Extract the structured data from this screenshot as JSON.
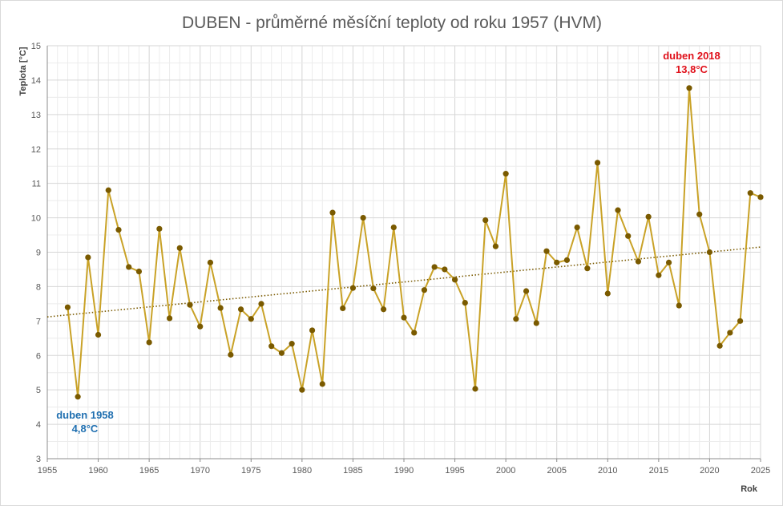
{
  "chart_data": {
    "type": "line",
    "title": "DUBEN - průměrné měsíční teploty od roku 1957 (HVM)",
    "xlabel": "Rok",
    "ylabel": "Teplota [°C]",
    "xlim": [
      1955,
      2025
    ],
    "ylim": [
      3,
      15
    ],
    "x_ticks": [
      1955,
      1960,
      1965,
      1970,
      1975,
      1980,
      1985,
      1990,
      1995,
      2000,
      2005,
      2010,
      2015,
      2020,
      2025
    ],
    "y_ticks": [
      3,
      4,
      5,
      6,
      7,
      8,
      9,
      10,
      11,
      12,
      13,
      14,
      15
    ],
    "grid": true,
    "legend": "none",
    "series": [
      {
        "color": "#c9a227",
        "marker_color": "#7a5a00",
        "x": [
          1957,
          1958,
          1959,
          1960,
          1961,
          1962,
          1963,
          1964,
          1965,
          1966,
          1967,
          1968,
          1969,
          1970,
          1971,
          1972,
          1973,
          1974,
          1975,
          1976,
          1977,
          1978,
          1979,
          1980,
          1981,
          1982,
          1983,
          1984,
          1985,
          1986,
          1987,
          1988,
          1989,
          1990,
          1991,
          1992,
          1993,
          1994,
          1995,
          1996,
          1997,
          1998,
          1999,
          2000,
          2001,
          2002,
          2003,
          2004,
          2005,
          2006,
          2007,
          2008,
          2009,
          2010,
          2011,
          2012,
          2013,
          2014,
          2015,
          2016,
          2017,
          2018,
          2019,
          2020,
          2021,
          2022,
          2023,
          2024,
          2025
        ],
        "y": [
          7.4,
          4.8,
          8.85,
          6.6,
          10.8,
          9.65,
          8.57,
          8.44,
          6.38,
          9.68,
          7.08,
          9.12,
          7.47,
          6.84,
          8.7,
          7.38,
          6.02,
          7.34,
          7.06,
          7.5,
          6.27,
          6.07,
          6.34,
          5.0,
          6.73,
          5.17,
          10.15,
          7.37,
          7.96,
          10.0,
          7.95,
          7.34,
          9.72,
          7.1,
          6.66,
          7.9,
          8.57,
          8.5,
          8.2,
          7.53,
          5.03,
          9.93,
          9.17,
          11.28,
          7.06,
          7.87,
          6.94,
          9.03,
          8.7,
          8.77,
          9.72,
          8.53,
          11.6,
          7.8,
          10.22,
          9.47,
          8.73,
          10.03,
          8.33,
          8.7,
          7.45,
          13.77,
          10.1,
          9.0,
          6.28,
          6.66,
          7.0,
          10.72,
          10.6
        ]
      }
    ],
    "trendline": {
      "type": "linear",
      "style": "dotted",
      "color": "#7a5a00",
      "x": [
        1955,
        2025
      ],
      "y": [
        7.12,
        9.15
      ]
    },
    "annotations": [
      {
        "id": "min",
        "line1": "duben 1958",
        "line2": "4,8°C",
        "color": "#1f6fb0",
        "x": 1958,
        "y": 4.8
      },
      {
        "id": "max",
        "line1": "duben 2018",
        "line2": "13,8°C",
        "color": "#e0101a",
        "x": 2018,
        "y": 13.77
      }
    ]
  }
}
